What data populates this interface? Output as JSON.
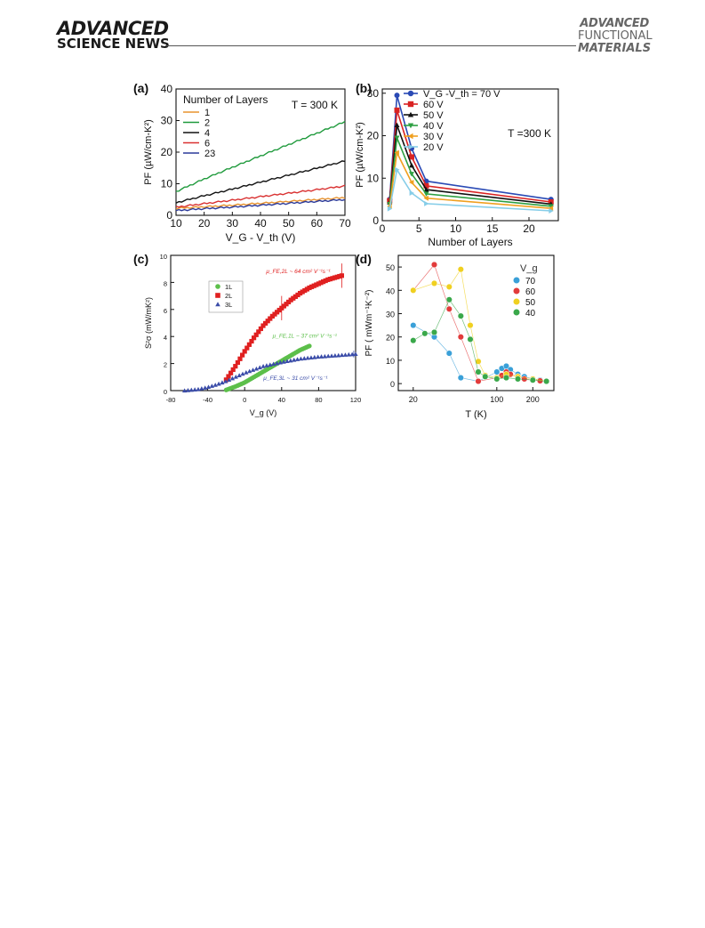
{
  "header": {
    "journal_left_1": "ADVANCED",
    "journal_left_2": "SCIENCE NEWS",
    "journal_right_1": "ADVANCED",
    "journal_right_2": "FUNCTIONAL",
    "journal_right_3": "MATERIALS"
  },
  "chart_data": [
    {
      "panel": "(a)",
      "type": "line",
      "annotation": "T = 300 K",
      "xlabel": "V_G - V_th (V)",
      "ylabel": "PF (µW/cm-K²)",
      "xlim": [
        10,
        70
      ],
      "ylim": [
        0,
        40
      ],
      "xticks": [
        "10",
        "20",
        "30",
        "40",
        "50",
        "60",
        "70"
      ],
      "yticks": [
        "0",
        "10",
        "20",
        "30",
        "40"
      ],
      "legend_title": "Number of Layers",
      "legend_position": "top-left",
      "series": [
        {
          "name": "1",
          "color": "#e8932e",
          "x": [
            10,
            20,
            30,
            40,
            50,
            60,
            70
          ],
          "y": [
            2.2,
            2.7,
            3.2,
            3.8,
            4.4,
            5.0,
            5.6
          ]
        },
        {
          "name": "2",
          "color": "#1f9a3c",
          "x": [
            10,
            20,
            30,
            40,
            50,
            60,
            70
          ],
          "y": [
            7.5,
            11.5,
            15.2,
            18.8,
            22.4,
            26.0,
            29.6
          ]
        },
        {
          "name": "4",
          "color": "#111111",
          "x": [
            10,
            20,
            30,
            40,
            50,
            60,
            70
          ],
          "y": [
            4.0,
            6.2,
            8.3,
            10.5,
            12.7,
            14.9,
            17.2
          ]
        },
        {
          "name": "6",
          "color": "#d93131",
          "x": [
            10,
            20,
            30,
            40,
            50,
            60,
            70
          ],
          "y": [
            2.6,
            3.7,
            4.8,
            5.9,
            7.0,
            8.1,
            9.3
          ]
        },
        {
          "name": "23",
          "color": "#2b3a9a",
          "x": [
            10,
            20,
            30,
            40,
            50,
            60,
            70
          ],
          "y": [
            1.5,
            2.1,
            2.6,
            3.2,
            3.8,
            4.4,
            5.0
          ]
        }
      ]
    },
    {
      "panel": "(b)",
      "type": "line",
      "annotation": "T =300 K",
      "xlabel": "Number of Layers",
      "ylabel": "PF (µW/cm-K²)",
      "xlim": [
        0,
        24
      ],
      "ylim": [
        0,
        31
      ],
      "xticks": [
        "0",
        "5",
        "10",
        "15",
        "20"
      ],
      "yticks": [
        "0",
        "10",
        "20",
        "30"
      ],
      "legend_position": "top-right",
      "x": [
        1,
        2,
        4,
        6,
        23
      ],
      "series": [
        {
          "name": "V_G -V_th = 70 V",
          "color": "#2a4ab5",
          "marker": "circle",
          "y": [
            5.0,
            29.5,
            17.0,
            9.3,
            5.0
          ]
        },
        {
          "name": "60 V",
          "color": "#d92323",
          "marker": "square",
          "y": [
            4.7,
            26.0,
            15.0,
            8.2,
            4.4
          ]
        },
        {
          "name": "50 V",
          "color": "#111111",
          "marker": "triangle",
          "y": [
            4.3,
            22.5,
            13.0,
            7.3,
            3.9
          ]
        },
        {
          "name": "40 V",
          "color": "#2ea043",
          "marker": "triangle-down",
          "y": [
            3.9,
            19.5,
            11.0,
            6.3,
            3.4
          ]
        },
        {
          "name": "30 V",
          "color": "#f0a020",
          "marker": "triangle-left",
          "y": [
            3.4,
            16.0,
            9.0,
            5.3,
            2.9
          ]
        },
        {
          "name": "20 V",
          "color": "#86cde8",
          "marker": "triangle-right",
          "y": [
            2.8,
            12.0,
            6.5,
            4.0,
            2.3
          ]
        }
      ]
    },
    {
      "panel": "(c)",
      "type": "scatter",
      "xlabel": "V_g (V)",
      "ylabel": "S²σ (mW/mK²)",
      "xlim": [
        -80,
        120
      ],
      "ylim": [
        0,
        10
      ],
      "xticks": [
        "-80",
        "-40",
        "0",
        "40",
        "80",
        "120"
      ],
      "yticks": [
        "0",
        "2",
        "4",
        "6",
        "8",
        "10"
      ],
      "legend_position": "top-left",
      "series": [
        {
          "name": "1L",
          "color": "#5cbf4a",
          "marker": "circle",
          "annotation": "μ_FE,1L ~ 37 cm² V⁻¹s⁻¹",
          "x": [
            -20,
            -10,
            0,
            10,
            20,
            30,
            40,
            50,
            60,
            70
          ],
          "y": [
            0.05,
            0.3,
            0.6,
            1.0,
            1.4,
            1.8,
            2.2,
            2.6,
            3.0,
            3.3
          ]
        },
        {
          "name": "2L",
          "color": "#e02020",
          "marker": "square",
          "annotation": "μ_FE,2L ~ 64 cm² V⁻¹s⁻¹",
          "x": [
            -20,
            -10,
            0,
            10,
            20,
            30,
            40,
            50,
            60,
            70,
            80,
            90,
            100,
            105
          ],
          "y": [
            0.8,
            1.8,
            2.9,
            3.9,
            4.8,
            5.5,
            6.1,
            6.7,
            7.2,
            7.6,
            7.9,
            8.2,
            8.4,
            8.5
          ]
        },
        {
          "name": "3L",
          "color": "#3a4ca8",
          "marker": "triangle",
          "annotation": "μ_FE,3L ~ 31 cm² V⁻¹s⁻¹",
          "x": [
            -65,
            -50,
            -40,
            -30,
            -20,
            -10,
            0,
            10,
            20,
            40,
            60,
            80,
            100,
            120
          ],
          "y": [
            0.0,
            0.1,
            0.25,
            0.45,
            0.7,
            1.0,
            1.3,
            1.55,
            1.8,
            2.1,
            2.35,
            2.5,
            2.6,
            2.7
          ]
        }
      ]
    },
    {
      "panel": "(d)",
      "type": "scatter",
      "xlabel": "T (K)",
      "ylabel": "PF  ( mWm⁻¹K⁻²)",
      "xscale": "log",
      "xlim": [
        15,
        300
      ],
      "ylim": [
        -3,
        55
      ],
      "xticks": [
        "20",
        "100",
        "200"
      ],
      "yticks": [
        "0",
        "10",
        "20",
        "30",
        "40",
        "50"
      ],
      "legend_title": "V_g",
      "legend_position": "top-right",
      "series": [
        {
          "name": "70",
          "color": "#3aa0d8",
          "x": [
            20,
            30,
            40,
            50,
            70,
            100,
            110,
            120,
            130,
            150,
            170,
            200,
            230,
            260
          ],
          "y": [
            25.0,
            20.0,
            13.0,
            2.5,
            1.0,
            5.0,
            6.5,
            7.5,
            6.0,
            4.0,
            3.0,
            2.0,
            1.5,
            1.0
          ]
        },
        {
          "name": "60",
          "color": "#e23b3b",
          "x": [
            20,
            30,
            40,
            50,
            70,
            100,
            110,
            120,
            130,
            150,
            170,
            200,
            230,
            260
          ],
          "y": [
            40.0,
            51.0,
            32.0,
            20.0,
            1.0,
            2.5,
            3.5,
            5.0,
            4.0,
            3.0,
            2.0,
            1.5,
            1.2,
            1.0
          ]
        },
        {
          "name": "50",
          "color": "#f0d020",
          "x": [
            20,
            30,
            40,
            50,
            60,
            70,
            80,
            100,
            120,
            150,
            200,
            260
          ],
          "y": [
            40.0,
            43.0,
            41.5,
            49.0,
            25.0,
            9.5,
            3.5,
            2.5,
            4.0,
            3.0,
            2.0,
            1.0
          ]
        },
        {
          "name": "40",
          "color": "#3aa84a",
          "x": [
            20,
            25,
            30,
            40,
            50,
            60,
            70,
            80,
            100,
            120,
            150,
            200,
            260
          ],
          "y": [
            18.5,
            21.5,
            22.0,
            36.0,
            29.0,
            19.0,
            5.0,
            3.0,
            2.0,
            2.5,
            2.0,
            1.5,
            1.0
          ]
        }
      ]
    }
  ]
}
